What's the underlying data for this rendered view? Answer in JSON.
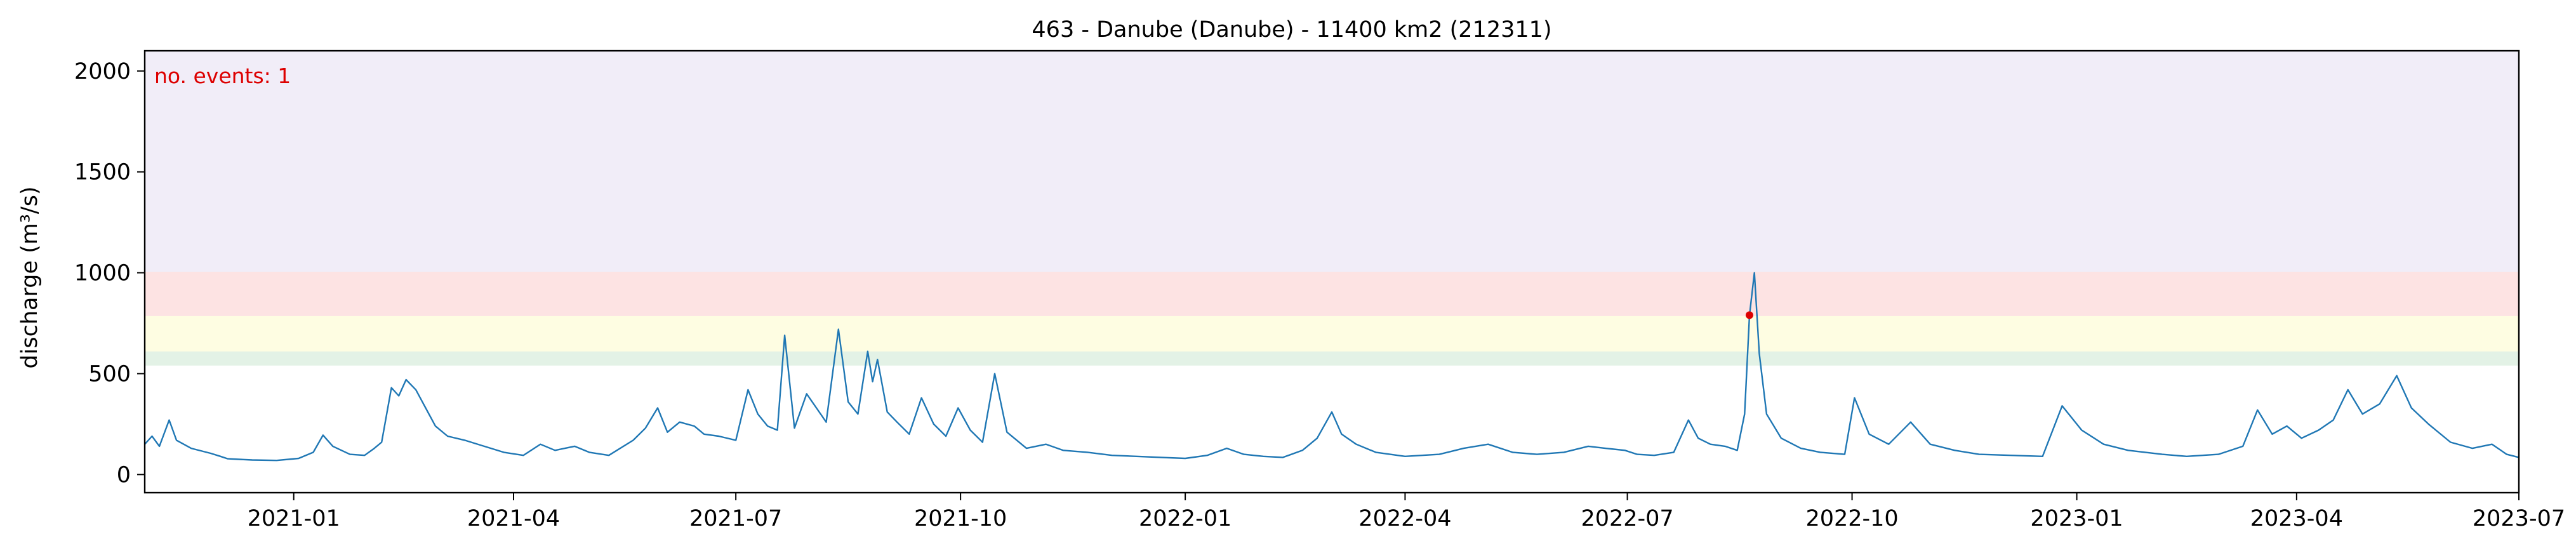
{
  "chart_data": {
    "type": "line",
    "title": "463 - Danube (Danube) - 11400 km2 (212311)",
    "ylabel": "discharge (m³/s)",
    "xlabel": "",
    "ylim": [
      -90,
      2100
    ],
    "xlim": [
      "2020-11-01",
      "2023-07-01"
    ],
    "grid": false,
    "x_tick_labels": [
      "2021-01",
      "2021-04",
      "2021-07",
      "2021-10",
      "2022-01",
      "2022-04",
      "2022-07",
      "2022-10",
      "2023-01",
      "2023-04",
      "2023-07"
    ],
    "y_ticks": [
      0,
      500,
      1000,
      1500,
      2000
    ],
    "threshold_bands": [
      {
        "from": 540,
        "to": 610,
        "color": "#e3f2e6"
      },
      {
        "from": 610,
        "to": 785,
        "color": "#fefde2"
      },
      {
        "from": 785,
        "to": 1005,
        "color": "#fde3e3"
      },
      {
        "from": 1005,
        "to": 2100,
        "color": "#f1edf8"
      }
    ],
    "annotation": {
      "text": "no. events: 1",
      "color": "#dd0000"
    },
    "event_marker": {
      "x": "2022-08-20",
      "y": 790,
      "color": "#dd0000"
    },
    "series": [
      {
        "color": "#1f77b4",
        "points": [
          [
            "2020-11-01",
            150
          ],
          [
            "2020-11-04",
            190
          ],
          [
            "2020-11-07",
            140
          ],
          [
            "2020-11-11",
            270
          ],
          [
            "2020-11-14",
            170
          ],
          [
            "2020-11-20",
            130
          ],
          [
            "2020-11-28",
            105
          ],
          [
            "2020-12-02",
            90
          ],
          [
            "2020-12-05",
            78
          ],
          [
            "2020-12-15",
            72
          ],
          [
            "2020-12-25",
            70
          ],
          [
            "2021-01-03",
            80
          ],
          [
            "2021-01-09",
            110
          ],
          [
            "2021-01-13",
            195
          ],
          [
            "2021-01-17",
            140
          ],
          [
            "2021-01-24",
            100
          ],
          [
            "2021-01-30",
            95
          ],
          [
            "2021-02-03",
            130
          ],
          [
            "2021-02-06",
            160
          ],
          [
            "2021-02-10",
            430
          ],
          [
            "2021-02-13",
            390
          ],
          [
            "2021-02-16",
            470
          ],
          [
            "2021-02-20",
            420
          ],
          [
            "2021-02-24",
            330
          ],
          [
            "2021-02-28",
            240
          ],
          [
            "2021-03-05",
            190
          ],
          [
            "2021-03-12",
            170
          ],
          [
            "2021-03-20",
            140
          ],
          [
            "2021-03-28",
            110
          ],
          [
            "2021-04-05",
            95
          ],
          [
            "2021-04-12",
            150
          ],
          [
            "2021-04-18",
            120
          ],
          [
            "2021-04-26",
            140
          ],
          [
            "2021-05-02",
            110
          ],
          [
            "2021-05-10",
            95
          ],
          [
            "2021-05-20",
            170
          ],
          [
            "2021-05-25",
            230
          ],
          [
            "2021-05-30",
            330
          ],
          [
            "2021-06-03",
            210
          ],
          [
            "2021-06-08",
            260
          ],
          [
            "2021-06-14",
            240
          ],
          [
            "2021-06-18",
            200
          ],
          [
            "2021-06-24",
            190
          ],
          [
            "2021-07-01",
            170
          ],
          [
            "2021-07-06",
            420
          ],
          [
            "2021-07-10",
            300
          ],
          [
            "2021-07-14",
            240
          ],
          [
            "2021-07-18",
            220
          ],
          [
            "2021-07-21",
            690
          ],
          [
            "2021-07-25",
            230
          ],
          [
            "2021-07-30",
            400
          ],
          [
            "2021-08-03",
            330
          ],
          [
            "2021-08-07",
            260
          ],
          [
            "2021-08-12",
            720
          ],
          [
            "2021-08-16",
            360
          ],
          [
            "2021-08-20",
            300
          ],
          [
            "2021-08-24",
            610
          ],
          [
            "2021-08-26",
            460
          ],
          [
            "2021-08-28",
            570
          ],
          [
            "2021-09-01",
            310
          ],
          [
            "2021-09-05",
            260
          ],
          [
            "2021-09-10",
            200
          ],
          [
            "2021-09-15",
            380
          ],
          [
            "2021-09-20",
            250
          ],
          [
            "2021-09-25",
            190
          ],
          [
            "2021-09-30",
            330
          ],
          [
            "2021-10-05",
            220
          ],
          [
            "2021-10-10",
            160
          ],
          [
            "2021-10-15",
            500
          ],
          [
            "2021-10-20",
            210
          ],
          [
            "2021-10-28",
            130
          ],
          [
            "2021-11-05",
            150
          ],
          [
            "2021-11-12",
            120
          ],
          [
            "2021-11-22",
            110
          ],
          [
            "2021-12-02",
            95
          ],
          [
            "2021-12-12",
            90
          ],
          [
            "2021-12-22",
            85
          ],
          [
            "2022-01-01",
            80
          ],
          [
            "2022-01-10",
            95
          ],
          [
            "2022-01-18",
            130
          ],
          [
            "2022-01-25",
            100
          ],
          [
            "2022-02-02",
            90
          ],
          [
            "2022-02-10",
            85
          ],
          [
            "2022-02-18",
            120
          ],
          [
            "2022-02-24",
            180
          ],
          [
            "2022-03-02",
            310
          ],
          [
            "2022-03-06",
            200
          ],
          [
            "2022-03-12",
            150
          ],
          [
            "2022-03-20",
            110
          ],
          [
            "2022-04-01",
            90
          ],
          [
            "2022-04-15",
            100
          ],
          [
            "2022-04-25",
            130
          ],
          [
            "2022-05-05",
            150
          ],
          [
            "2022-05-15",
            110
          ],
          [
            "2022-05-25",
            100
          ],
          [
            "2022-06-05",
            110
          ],
          [
            "2022-06-15",
            140
          ],
          [
            "2022-06-22",
            130
          ],
          [
            "2022-06-30",
            120
          ],
          [
            "2022-07-05",
            100
          ],
          [
            "2022-07-12",
            95
          ],
          [
            "2022-07-20",
            110
          ],
          [
            "2022-07-26",
            270
          ],
          [
            "2022-07-30",
            180
          ],
          [
            "2022-08-04",
            150
          ],
          [
            "2022-08-10",
            140
          ],
          [
            "2022-08-15",
            120
          ],
          [
            "2022-08-18",
            300
          ],
          [
            "2022-08-20",
            790
          ],
          [
            "2022-08-22",
            1000
          ],
          [
            "2022-08-24",
            600
          ],
          [
            "2022-08-27",
            300
          ],
          [
            "2022-09-02",
            180
          ],
          [
            "2022-09-10",
            130
          ],
          [
            "2022-09-18",
            110
          ],
          [
            "2022-09-28",
            100
          ],
          [
            "2022-10-02",
            380
          ],
          [
            "2022-10-08",
            200
          ],
          [
            "2022-10-16",
            150
          ],
          [
            "2022-10-25",
            260
          ],
          [
            "2022-11-02",
            150
          ],
          [
            "2022-11-12",
            120
          ],
          [
            "2022-11-22",
            100
          ],
          [
            "2022-12-05",
            95
          ],
          [
            "2022-12-18",
            90
          ],
          [
            "2022-12-26",
            340
          ],
          [
            "2023-01-03",
            220
          ],
          [
            "2023-01-12",
            150
          ],
          [
            "2023-01-22",
            120
          ],
          [
            "2023-02-05",
            100
          ],
          [
            "2023-02-15",
            90
          ],
          [
            "2023-02-28",
            100
          ],
          [
            "2023-03-10",
            140
          ],
          [
            "2023-03-16",
            320
          ],
          [
            "2023-03-22",
            200
          ],
          [
            "2023-03-28",
            240
          ],
          [
            "2023-04-03",
            180
          ],
          [
            "2023-04-10",
            220
          ],
          [
            "2023-04-16",
            270
          ],
          [
            "2023-04-22",
            420
          ],
          [
            "2023-04-28",
            300
          ],
          [
            "2023-05-05",
            350
          ],
          [
            "2023-05-12",
            490
          ],
          [
            "2023-05-18",
            330
          ],
          [
            "2023-05-25",
            250
          ],
          [
            "2023-06-03",
            160
          ],
          [
            "2023-06-12",
            130
          ],
          [
            "2023-06-20",
            150
          ],
          [
            "2023-06-26",
            100
          ],
          [
            "2023-07-01",
            85
          ]
        ]
      }
    ]
  }
}
